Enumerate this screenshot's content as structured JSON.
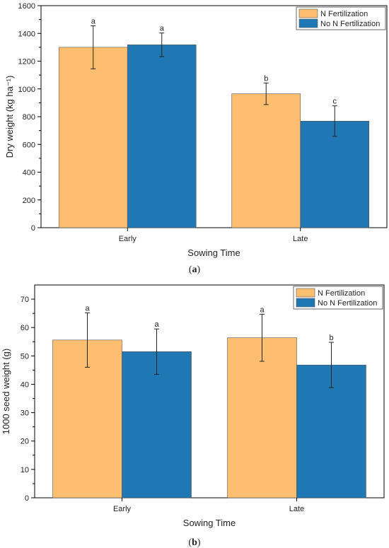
{
  "colors": {
    "n_fert": "#FDBF6F",
    "no_n_fert": "#1F78B4",
    "axis": "#000000",
    "error_bar": "#222222"
  },
  "chart_data": [
    {
      "type": "bar",
      "caption_letter": "a",
      "categories": [
        "Early",
        "Late"
      ],
      "xlabel": "Sowing Time",
      "ylabel": "Dry weight (kg ha⁻¹)",
      "ylim": [
        0,
        1600
      ],
      "yticks": [
        0,
        200,
        400,
        600,
        800,
        1000,
        1200,
        1400,
        1600
      ],
      "legend_position": "top-right",
      "series": [
        {
          "name": "N Fertilization",
          "values": [
            1300,
            965
          ],
          "errors": [
            155,
            78
          ],
          "letters": [
            "a",
            "b"
          ]
        },
        {
          "name": "No N Fertilization",
          "values": [
            1318,
            768
          ],
          "errors": [
            85,
            110
          ],
          "letters": [
            "a",
            "c"
          ]
        }
      ]
    },
    {
      "type": "bar",
      "caption_letter": "b",
      "categories": [
        "Early",
        "Late"
      ],
      "xlabel": "Sowing Time",
      "ylabel": "1000 seed weight (g)",
      "ylim": [
        0,
        75
      ],
      "yticks": [
        0,
        10,
        20,
        30,
        40,
        50,
        60,
        70
      ],
      "legend_position": "top-right",
      "series": [
        {
          "name": "N Fertilization",
          "values": [
            55.6,
            56.4
          ],
          "errors": [
            9.6,
            8.3
          ],
          "letters": [
            "a",
            "a"
          ]
        },
        {
          "name": "No N Fertilization",
          "values": [
            51.5,
            46.8
          ],
          "errors": [
            8.0,
            8.0
          ],
          "letters": [
            "a",
            "b"
          ]
        }
      ]
    }
  ]
}
